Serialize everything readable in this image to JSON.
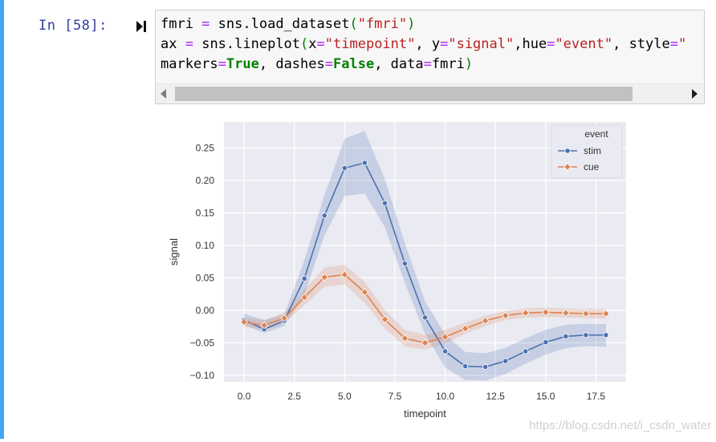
{
  "cell": {
    "prompt": "In  [58]:",
    "code_lines": [
      [
        {
          "t": "fmri ",
          "c": "plain"
        },
        {
          "t": "=",
          "c": "op"
        },
        {
          "t": " sns.load_dataset",
          "c": "plain"
        },
        {
          "t": "(",
          "c": "paren"
        },
        {
          "t": "\"fmri\"",
          "c": "str"
        },
        {
          "t": ")",
          "c": "paren"
        }
      ],
      [
        {
          "t": "ax ",
          "c": "plain"
        },
        {
          "t": "=",
          "c": "op"
        },
        {
          "t": " sns.lineplot",
          "c": "plain"
        },
        {
          "t": "(",
          "c": "paren"
        },
        {
          "t": "x",
          "c": "plain"
        },
        {
          "t": "=",
          "c": "op"
        },
        {
          "t": "\"timepoint\"",
          "c": "str"
        },
        {
          "t": ", y",
          "c": "plain"
        },
        {
          "t": "=",
          "c": "op"
        },
        {
          "t": "\"signal\"",
          "c": "str"
        },
        {
          "t": ",hue",
          "c": "plain"
        },
        {
          "t": "=",
          "c": "op"
        },
        {
          "t": "\"event\"",
          "c": "str"
        },
        {
          "t": ", style",
          "c": "plain"
        },
        {
          "t": "=",
          "c": "op"
        },
        {
          "t": "\"",
          "c": "str"
        }
      ],
      [
        {
          "t": "markers",
          "c": "plain"
        },
        {
          "t": "=",
          "c": "op"
        },
        {
          "t": "True",
          "c": "kw"
        },
        {
          "t": ", dashes",
          "c": "plain"
        },
        {
          "t": "=",
          "c": "op"
        },
        {
          "t": "False",
          "c": "kw"
        },
        {
          "t": ", data",
          "c": "plain"
        },
        {
          "t": "=",
          "c": "op"
        },
        {
          "t": "fmri",
          "c": "plain"
        },
        {
          "t": ")",
          "c": "paren"
        }
      ]
    ]
  },
  "watermark": "https://blog.csdn.net/i_csdn_water",
  "chart_data": {
    "type": "line",
    "xlabel": "timepoint",
    "ylabel": "signal",
    "xlim": [
      -1,
      19
    ],
    "ylim": [
      -0.11,
      0.29
    ],
    "xticks": [
      0.0,
      2.5,
      5.0,
      7.5,
      10.0,
      12.5,
      15.0,
      17.5
    ],
    "xtick_labels": [
      "0.0",
      "2.5",
      "5.0",
      "7.5",
      "10.0",
      "12.5",
      "15.0",
      "17.5"
    ],
    "yticks": [
      -0.1,
      -0.05,
      0.0,
      0.05,
      0.1,
      0.15,
      0.2,
      0.25
    ],
    "ytick_labels": [
      "−0.10",
      "−0.05",
      "0.00",
      "0.05",
      "0.10",
      "0.15",
      "0.20",
      "0.25"
    ],
    "grid": true,
    "legend": {
      "title": "event",
      "position": "top-right"
    },
    "x": [
      0,
      1,
      2,
      3,
      4,
      5,
      6,
      7,
      8,
      9,
      10,
      11,
      12,
      13,
      14,
      15,
      16,
      17,
      18
    ],
    "series": [
      {
        "name": "stim",
        "color": "#4c72b0",
        "marker": "circle",
        "values": [
          -0.015,
          -0.029,
          -0.016,
          0.049,
          0.146,
          0.219,
          0.227,
          0.165,
          0.072,
          -0.011,
          -0.063,
          -0.086,
          -0.087,
          -0.078,
          -0.063,
          -0.049,
          -0.04,
          -0.038,
          -0.038
        ],
        "lower": [
          -0.022,
          -0.035,
          -0.024,
          0.024,
          0.115,
          0.176,
          0.18,
          0.128,
          0.042,
          -0.036,
          -0.088,
          -0.107,
          -0.108,
          -0.098,
          -0.082,
          -0.068,
          -0.058,
          -0.055,
          -0.056
        ],
        "upper": [
          -0.005,
          -0.015,
          -0.006,
          0.077,
          0.178,
          0.264,
          0.276,
          0.202,
          0.103,
          0.014,
          -0.037,
          -0.064,
          -0.066,
          -0.058,
          -0.043,
          -0.03,
          -0.022,
          -0.021,
          -0.021
        ]
      },
      {
        "name": "cue",
        "color": "#dd8452",
        "marker": "x",
        "values": [
          -0.018,
          -0.023,
          -0.012,
          0.02,
          0.051,
          0.055,
          0.028,
          -0.014,
          -0.043,
          -0.05,
          -0.041,
          -0.028,
          -0.016,
          -0.008,
          -0.004,
          -0.003,
          -0.004,
          -0.005,
          -0.005
        ],
        "lower": [
          -0.025,
          -0.03,
          -0.02,
          0.008,
          0.036,
          0.04,
          0.012,
          -0.028,
          -0.056,
          -0.06,
          -0.051,
          -0.036,
          -0.024,
          -0.015,
          -0.011,
          -0.01,
          -0.011,
          -0.012,
          -0.013
        ],
        "upper": [
          -0.011,
          -0.015,
          -0.004,
          0.032,
          0.066,
          0.07,
          0.044,
          0.001,
          -0.03,
          -0.038,
          -0.03,
          -0.019,
          -0.008,
          -0.001,
          0.003,
          0.004,
          0.003,
          0.002,
          0.002
        ]
      }
    ]
  }
}
